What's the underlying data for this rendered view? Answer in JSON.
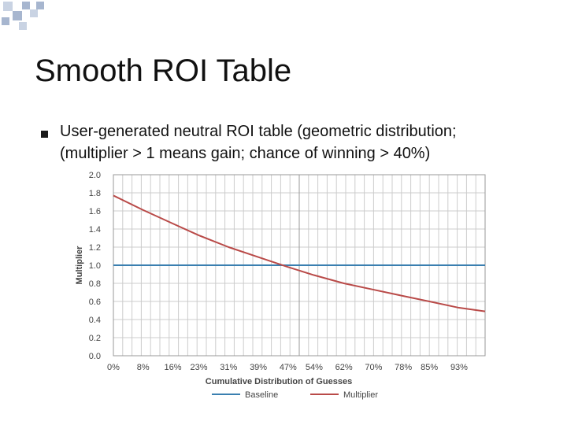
{
  "slide": {
    "title": "Smooth ROI Table",
    "bullet_line_1": "User-generated neutral ROI table (geometric distribution;",
    "bullet_line_2": "(multiplier > 1 means gain; chance of winning > 40%)"
  },
  "colors": {
    "baseline": "#3a7fb0",
    "multiplier": "#b94a48",
    "grid": "#cccccc",
    "corner_squares": "#a7b6cf"
  },
  "chart_data": {
    "type": "line",
    "title": "",
    "xlabel": "Cumulative Distribution of Guesses",
    "ylabel": "Multiplier",
    "ylim": [
      0,
      2
    ],
    "y_ticks": [
      "0.0",
      "0.2",
      "0.4",
      "0.6",
      "0.8",
      "1.0",
      "1.2",
      "1.4",
      "1.6",
      "1.8",
      "2.0"
    ],
    "x_ticks": [
      "0%",
      "8%",
      "16%",
      "23%",
      "31%",
      "39%",
      "47%",
      "54%",
      "62%",
      "70%",
      "78%",
      "85%",
      "93%"
    ],
    "x": [
      0,
      8,
      16,
      23,
      31,
      39,
      47,
      54,
      62,
      70,
      78,
      85,
      93,
      100
    ],
    "series": [
      {
        "name": "Baseline",
        "values": [
          1.0,
          1.0,
          1.0,
          1.0,
          1.0,
          1.0,
          1.0,
          1.0,
          1.0,
          1.0,
          1.0,
          1.0,
          1.0,
          1.0
        ]
      },
      {
        "name": "Multiplier",
        "values": [
          1.77,
          1.61,
          1.46,
          1.33,
          1.2,
          1.09,
          0.98,
          0.89,
          0.8,
          0.73,
          0.66,
          0.6,
          0.53,
          0.49
        ]
      }
    ],
    "legend": [
      "Baseline",
      "Multiplier"
    ],
    "legend_position": "bottom"
  }
}
